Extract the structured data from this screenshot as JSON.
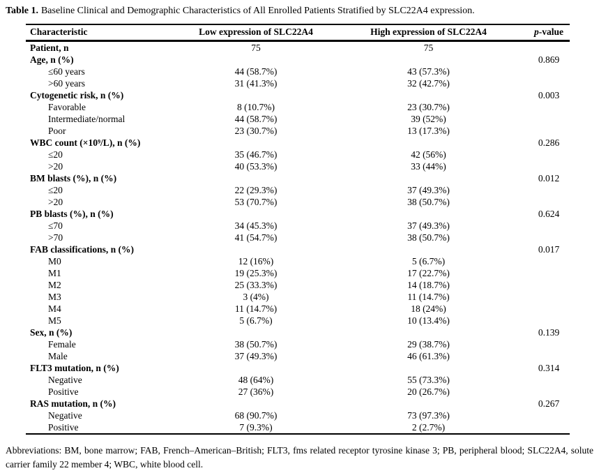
{
  "title": {
    "label": "Table 1.",
    "text": "Baseline Clinical and Demographic Characteristics of All Enrolled Patients Stratified by SLC22A4 expression."
  },
  "table": {
    "columns": [
      "Characteristic",
      "Low expression of SLC22A4",
      "High expression of SLC22A4"
    ],
    "p_header": {
      "italic": "p",
      "rest": "-value"
    },
    "rows": [
      {
        "label": "Patient, n",
        "bold": true,
        "indent": false,
        "low": "75",
        "high": "75",
        "p": ""
      },
      {
        "label": "Age, n (%)",
        "bold": true,
        "indent": false,
        "low": "",
        "high": "",
        "p": "0.869"
      },
      {
        "label": "≤60 years",
        "bold": false,
        "indent": true,
        "low": "44 (58.7%)",
        "high": "43 (57.3%)",
        "p": ""
      },
      {
        "label": ">60 years",
        "bold": false,
        "indent": true,
        "low": "31 (41.3%)",
        "high": "32 (42.7%)",
        "p": ""
      },
      {
        "label": "Cytogenetic risk, n (%)",
        "bold": true,
        "indent": false,
        "low": "",
        "high": "",
        "p": "0.003"
      },
      {
        "label": "Favorable",
        "bold": false,
        "indent": true,
        "low": "8 (10.7%)",
        "high": "23 (30.7%)",
        "p": ""
      },
      {
        "label": "Intermediate/normal",
        "bold": false,
        "indent": true,
        "low": "44 (58.7%)",
        "high": "39 (52%)",
        "p": ""
      },
      {
        "label": "Poor",
        "bold": false,
        "indent": true,
        "low": "23 (30.7%)",
        "high": "13 (17.3%)",
        "p": ""
      },
      {
        "label": "WBC count (×10⁹/L), n (%)",
        "bold": true,
        "indent": false,
        "low": "",
        "high": "",
        "p": "0.286"
      },
      {
        "label": "≤20",
        "bold": false,
        "indent": true,
        "low": "35 (46.7%)",
        "high": "42 (56%)",
        "p": ""
      },
      {
        "label": ">20",
        "bold": false,
        "indent": true,
        "low": "40 (53.3%)",
        "high": "33 (44%)",
        "p": ""
      },
      {
        "label": "BM blasts (%), n (%)",
        "bold": true,
        "indent": false,
        "low": "",
        "high": "",
        "p": "0.012"
      },
      {
        "label": "≤20",
        "bold": false,
        "indent": true,
        "low": "22 (29.3%)",
        "high": "37 (49.3%)",
        "p": ""
      },
      {
        "label": ">20",
        "bold": false,
        "indent": true,
        "low": "53 (70.7%)",
        "high": "38 (50.7%)",
        "p": ""
      },
      {
        "label": "PB blasts (%), n (%)",
        "bold": true,
        "indent": false,
        "low": "",
        "high": "",
        "p": "0.624"
      },
      {
        "label": "≤70",
        "bold": false,
        "indent": true,
        "low": "34 (45.3%)",
        "high": "37 (49.3%)",
        "p": ""
      },
      {
        "label": ">70",
        "bold": false,
        "indent": true,
        "low": "41 (54.7%)",
        "high": "38 (50.7%)",
        "p": ""
      },
      {
        "label": "FAB classifications, n (%)",
        "bold": true,
        "indent": false,
        "low": "",
        "high": "",
        "p": "0.017"
      },
      {
        "label": "M0",
        "bold": false,
        "indent": true,
        "low": "12 (16%)",
        "high": "5 (6.7%)",
        "p": ""
      },
      {
        "label": "M1",
        "bold": false,
        "indent": true,
        "low": "19 (25.3%)",
        "high": "17 (22.7%)",
        "p": ""
      },
      {
        "label": "M2",
        "bold": false,
        "indent": true,
        "low": "25 (33.3%)",
        "high": "14 (18.7%)",
        "p": ""
      },
      {
        "label": "M3",
        "bold": false,
        "indent": true,
        "low": "3 (4%)",
        "high": "11 (14.7%)",
        "p": ""
      },
      {
        "label": "M4",
        "bold": false,
        "indent": true,
        "low": "11 (14.7%)",
        "high": "18 (24%)",
        "p": ""
      },
      {
        "label": "M5",
        "bold": false,
        "indent": true,
        "low": "5 (6.7%)",
        "high": "10 (13.4%)",
        "p": ""
      },
      {
        "label": "Sex, n (%)",
        "bold": true,
        "indent": false,
        "low": "",
        "high": "",
        "p": "0.139"
      },
      {
        "label": "Female",
        "bold": false,
        "indent": true,
        "low": "38 (50.7%)",
        "high": "29 (38.7%)",
        "p": ""
      },
      {
        "label": "Male",
        "bold": false,
        "indent": true,
        "low": "37 (49.3%)",
        "high": "46 (61.3%)",
        "p": ""
      },
      {
        "label": "FLT3 mutation, n (%)",
        "bold": true,
        "indent": false,
        "low": "",
        "high": "",
        "p": "0.314"
      },
      {
        "label": "Negative",
        "bold": false,
        "indent": true,
        "low": "48 (64%)",
        "high": "55 (73.3%)",
        "p": ""
      },
      {
        "label": "Positive",
        "bold": false,
        "indent": true,
        "low": "27 (36%)",
        "high": "20 (26.7%)",
        "p": ""
      },
      {
        "label": "RAS mutation, n (%)",
        "bold": true,
        "indent": false,
        "low": "",
        "high": "",
        "p": "0.267"
      },
      {
        "label": "Negative",
        "bold": false,
        "indent": true,
        "low": "68 (90.7%)",
        "high": "73 (97.3%)",
        "p": ""
      },
      {
        "label": "Positive",
        "bold": false,
        "indent": true,
        "low": "7 (9.3%)",
        "high": "2 (2.7%)",
        "p": ""
      }
    ]
  },
  "footnote": "Abbreviations: BM, bone marrow; FAB, French–American–British; FLT3, fms related receptor tyrosine kinase 3; PB, peripheral blood; SLC22A4, solute carrier family 22 member 4; WBC, white blood cell."
}
